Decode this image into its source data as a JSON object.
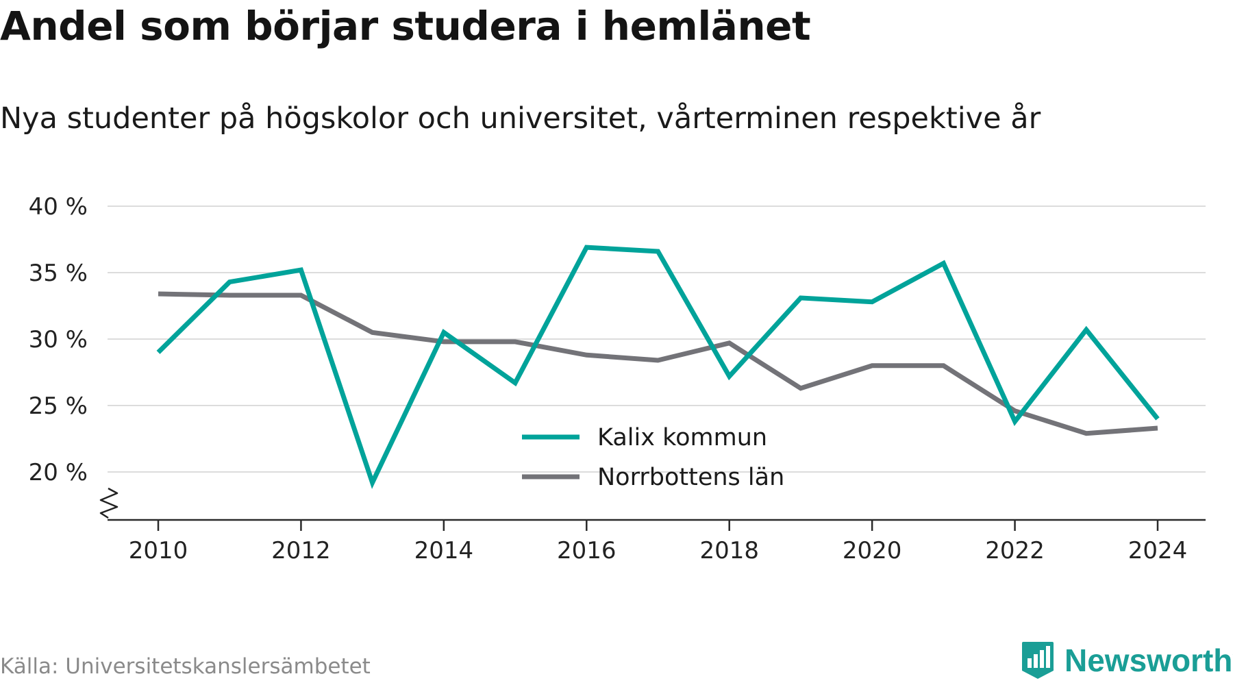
{
  "chart_data": {
    "type": "line",
    "title": "Andel som börjar studera i hemlänet",
    "subtitle": "Nya studenter på högskolor och universitet, vårterminen respektive år",
    "x": [
      2010,
      2011,
      2012,
      2013,
      2014,
      2015,
      2016,
      2017,
      2018,
      2019,
      2020,
      2021,
      2022,
      2023,
      2024
    ],
    "x_ticks": [
      "2010",
      "2012",
      "2014",
      "2016",
      "2018",
      "2020",
      "2022",
      "2024"
    ],
    "y_ticks": [
      "40 %",
      "35 %",
      "30 %",
      "25 %",
      "20 %"
    ],
    "ylim": [
      16.4,
      40
    ],
    "y_axis_break": true,
    "grid": "horizontal",
    "legend_position": "bottom-center",
    "series": [
      {
        "name": "Kalix kommun",
        "color": "#00a39a",
        "values": [
          29.0,
          34.3,
          35.2,
          19.2,
          30.5,
          26.7,
          36.9,
          36.6,
          27.2,
          33.1,
          32.8,
          35.7,
          23.8,
          30.7,
          24.0
        ]
      },
      {
        "name": "Norrbottens län",
        "color": "#737378",
        "values": [
          33.4,
          33.3,
          33.3,
          30.5,
          29.8,
          29.8,
          28.8,
          28.4,
          29.7,
          26.3,
          28.0,
          28.0,
          24.6,
          22.9,
          23.3
        ]
      }
    ]
  },
  "source": "Källa: Universitetskanslersämbetet",
  "brand": {
    "name": "Newsworthy",
    "icon": "newsworthy-logo-icon",
    "color": "#1a9e96"
  }
}
